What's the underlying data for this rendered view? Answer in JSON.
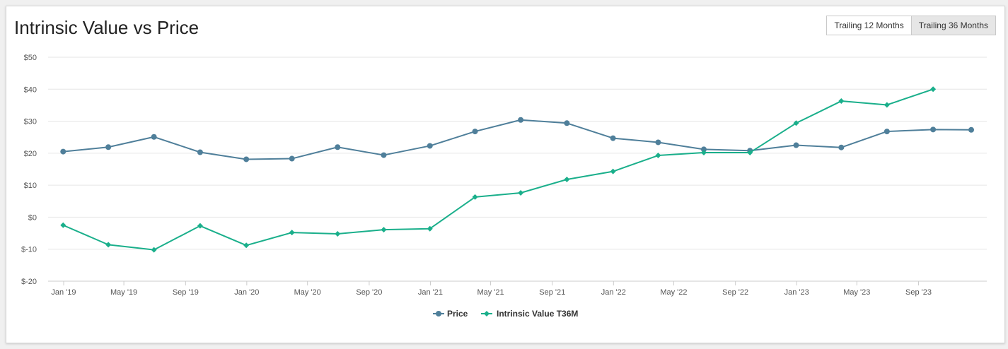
{
  "title": "Intrinsic Value vs Price",
  "buttons": [
    {
      "label": "Trailing 12 Months",
      "active": false
    },
    {
      "label": "Trailing 36 Months",
      "active": true
    }
  ],
  "chart_data": {
    "type": "line",
    "title": "Intrinsic Value vs Price",
    "ylim": [
      -20,
      50
    ],
    "y_ticks": [
      -20,
      -10,
      0,
      10,
      20,
      30,
      40,
      50
    ],
    "y_tick_labels": [
      "$-20",
      "$-10",
      "$0",
      "$10",
      "$20",
      "$30",
      "$40",
      "$50"
    ],
    "x_ticks": [
      "2019-01-01",
      "2019-05-01",
      "2019-09-01",
      "2020-01-01",
      "2020-05-01",
      "2020-09-01",
      "2021-01-01",
      "2021-05-01",
      "2021-09-01",
      "2022-01-01",
      "2022-05-01",
      "2022-09-01",
      "2023-01-01",
      "2023-05-01",
      "2023-09-01"
    ],
    "x_tick_labels": [
      "Jan '19",
      "May '19",
      "Sep '19",
      "Jan '20",
      "May '20",
      "Sep '20",
      "Jan '21",
      "May '21",
      "Sep '21",
      "Jan '22",
      "May '22",
      "Sep '22",
      "Jan '23",
      "May '23",
      "Sep '23"
    ],
    "xlim": [
      "2018-12-01",
      "2024-01-15"
    ],
    "grid": true,
    "legend_position": "bottom",
    "series": [
      {
        "name": "Price",
        "color": "#4f7f9a",
        "marker": "circle",
        "x": [
          "2018-12-31",
          "2019-03-31",
          "2019-06-30",
          "2019-09-30",
          "2019-12-31",
          "2020-03-31",
          "2020-06-30",
          "2020-09-30",
          "2020-12-31",
          "2021-03-31",
          "2021-06-30",
          "2021-09-30",
          "2021-12-31",
          "2022-03-31",
          "2022-06-30",
          "2022-09-30",
          "2022-12-31",
          "2023-03-31",
          "2023-06-30",
          "2023-09-30",
          "2023-12-15"
        ],
        "values": [
          20.5,
          21.9,
          25.1,
          20.3,
          18.1,
          18.3,
          21.9,
          19.4,
          22.3,
          26.8,
          30.4,
          29.4,
          24.7,
          23.4,
          21.2,
          20.8,
          22.5,
          21.8,
          26.8,
          27.4,
          27.3
        ]
      },
      {
        "name": "Intrinsic Value T36M",
        "color": "#1aaf8b",
        "marker": "diamond",
        "x": [
          "2018-12-31",
          "2019-03-31",
          "2019-06-30",
          "2019-09-30",
          "2019-12-31",
          "2020-03-31",
          "2020-06-30",
          "2020-09-30",
          "2020-12-31",
          "2021-03-31",
          "2021-06-30",
          "2021-09-30",
          "2021-12-31",
          "2022-03-31",
          "2022-06-30",
          "2022-09-30",
          "2022-12-31",
          "2023-03-31",
          "2023-06-30",
          "2023-09-30"
        ],
        "values": [
          -2.5,
          -8.6,
          -10.2,
          -2.7,
          -8.8,
          -4.8,
          -5.2,
          -3.9,
          -3.6,
          6.3,
          7.6,
          11.8,
          14.3,
          19.3,
          20.2,
          20.2,
          29.4,
          36.3,
          35.1,
          40.0
        ]
      }
    ]
  }
}
